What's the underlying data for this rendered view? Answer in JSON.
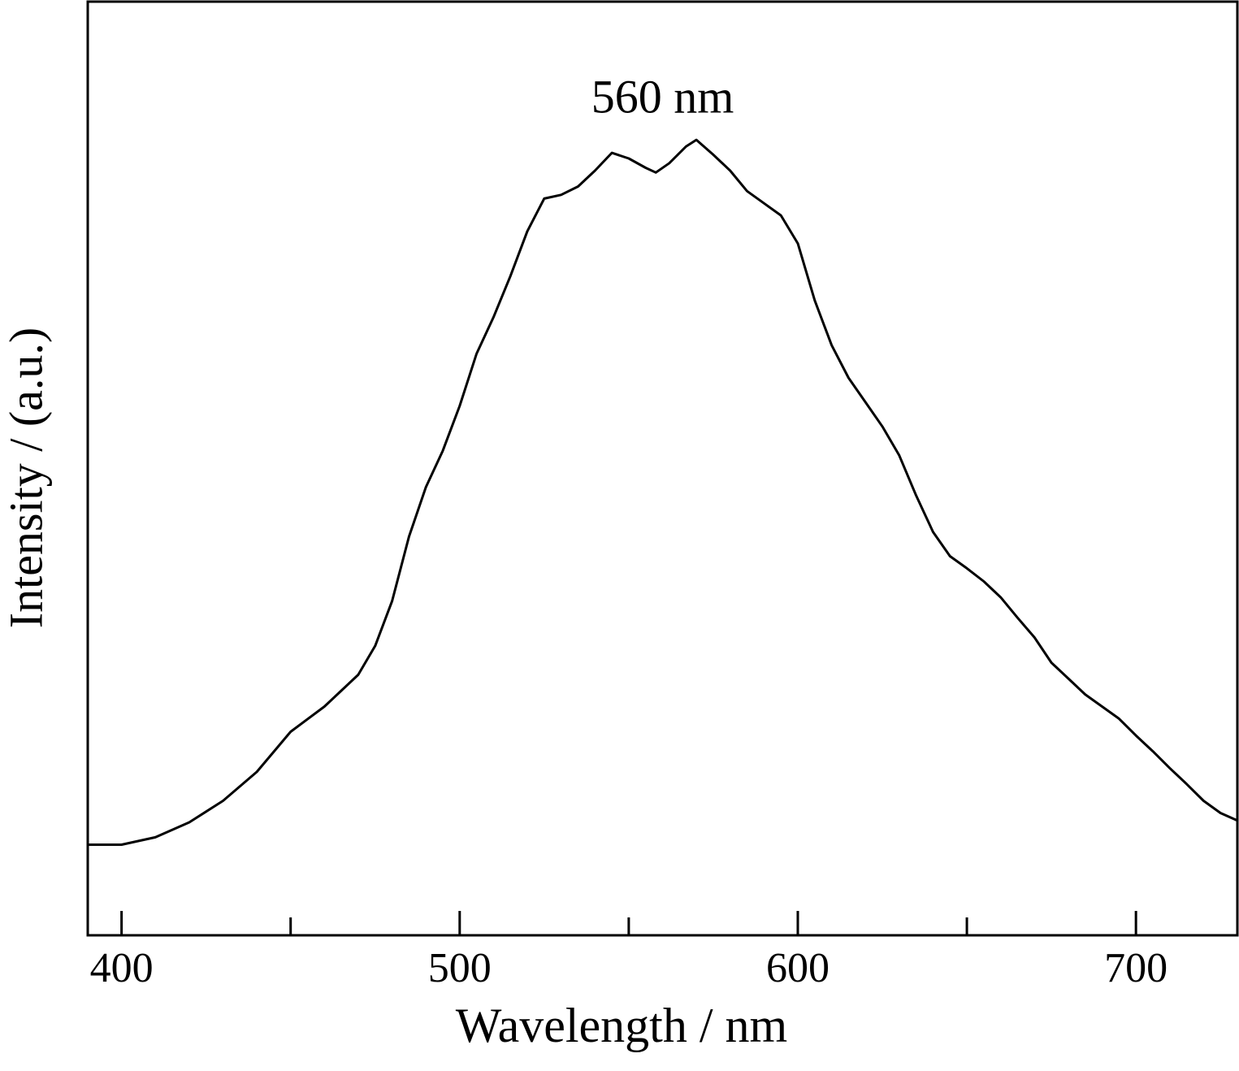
{
  "chart_data": {
    "type": "line",
    "xlabel": "Wavelength / nm",
    "ylabel": "Intensity / (a.u.)",
    "annotations": [
      {
        "text": "560 nm",
        "x": 560
      }
    ],
    "color": "#000000",
    "x": [
      390,
      400,
      410,
      420,
      430,
      440,
      450,
      460,
      470,
      475,
      480,
      485,
      490,
      495,
      500,
      505,
      510,
      515,
      520,
      525,
      530,
      535,
      540,
      545,
      550,
      555,
      558,
      562,
      567,
      570,
      575,
      580,
      585,
      590,
      595,
      600,
      605,
      610,
      615,
      620,
      625,
      630,
      635,
      640,
      645,
      650,
      655,
      660,
      665,
      670,
      675,
      680,
      685,
      690,
      695,
      700,
      705,
      710,
      715,
      720,
      725,
      730
    ],
    "values": [
      9.7,
      9.7,
      10.5,
      12.1,
      14.4,
      17.5,
      21.8,
      24.5,
      27.9,
      31,
      35.8,
      42.7,
      48,
      51.9,
      56.7,
      62.3,
      66.2,
      70.6,
      75.4,
      78.9,
      79.3,
      80.2,
      81.9,
      83.8,
      83.2,
      82.2,
      81.7,
      82.7,
      84.5,
      85.2,
      83.6,
      81.9,
      79.7,
      78.4,
      77.1,
      74.1,
      68,
      63.2,
      59.7,
      57.1,
      54.5,
      51.4,
      47.1,
      43.2,
      40.6,
      39.3,
      37.9,
      36.2,
      34,
      31.9,
      29.2,
      27.5,
      25.8,
      24.5,
      23.2,
      21.4,
      19.7,
      17.9,
      16.2,
      14.4,
      13.1,
      12.3
    ],
    "xlim": [
      390,
      730
    ],
    "xticks": [
      400,
      500,
      600,
      700
    ],
    "xminor_ticks": [
      450,
      550,
      650
    ],
    "ylim": [
      0,
      100
    ]
  }
}
